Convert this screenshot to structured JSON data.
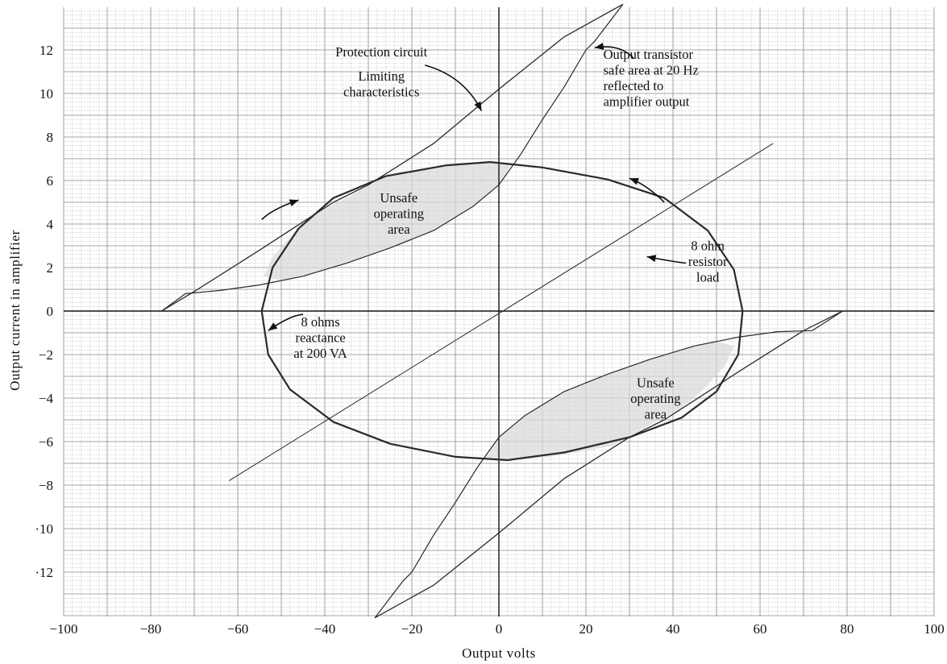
{
  "chart_data": {
    "type": "line",
    "xlabel": "Output volts",
    "ylabel": "Output current in amplifier",
    "xlim": [
      -100,
      100
    ],
    "ylim": [
      -14,
      14
    ],
    "x_ticks": [
      -100,
      -80,
      -60,
      -40,
      -20,
      0,
      20,
      40,
      60,
      80,
      100
    ],
    "x_tick_labels": [
      "−100",
      "−80",
      "−60",
      "−40",
      "−20",
      "0",
      "20",
      "40",
      "60",
      "80",
      "100"
    ],
    "y_ticks": [
      12,
      10,
      8,
      6,
      4,
      2,
      0,
      -2,
      -4,
      -6,
      -8,
      -10,
      -12
    ],
    "y_tick_labels": [
      "12",
      "10",
      "8",
      "6",
      "4",
      "2",
      "0",
      "−2",
      "−4",
      "−6",
      "−8",
      "·10",
      "·12"
    ],
    "grid": true,
    "series": [
      {
        "points": [
          [
            -77.5,
            0
          ],
          [
            -72,
            0.8
          ],
          [
            -64,
            0.95
          ],
          [
            -55,
            1.2
          ],
          [
            -45,
            1.6
          ],
          [
            -35,
            2.2
          ],
          [
            -25,
            2.9
          ],
          [
            -15,
            3.7
          ],
          [
            -6,
            4.8
          ],
          [
            0,
            5.8
          ],
          [
            5,
            7.2
          ],
          [
            10,
            8.8
          ],
          [
            15,
            10.3
          ],
          [
            20,
            12
          ],
          [
            22,
            12.4
          ],
          [
            28.5,
            14.1
          ]
        ]
      },
      {
        "points": [
          [
            -77.5,
            0
          ],
          [
            -70,
            0.9
          ],
          [
            -55,
            2.8
          ],
          [
            -45,
            4.1
          ],
          [
            -38,
            5.0
          ],
          [
            -30,
            5.8
          ],
          [
            -15,
            7.7
          ],
          [
            0,
            10.2
          ],
          [
            15,
            12.6
          ],
          [
            28.5,
            14.1
          ]
        ]
      },
      {
        "points": [
          [
            -54.5,
            0
          ],
          [
            -52,
            2
          ],
          [
            -46,
            3.8
          ],
          [
            -38,
            5.2
          ],
          [
            -26,
            6.2
          ],
          [
            -12,
            6.7
          ],
          [
            -2,
            6.85
          ],
          [
            10,
            6.6
          ],
          [
            25,
            6.05
          ],
          [
            38,
            5.2
          ],
          [
            48,
            3.7
          ],
          [
            54,
            1.9
          ],
          [
            56,
            0
          ],
          [
            55,
            -2
          ],
          [
            50,
            -3.7
          ],
          [
            42,
            -4.9
          ],
          [
            30,
            -5.8
          ],
          [
            15,
            -6.5
          ],
          [
            2,
            -6.85
          ],
          [
            -10,
            -6.7
          ],
          [
            -25,
            -6.1
          ],
          [
            -38,
            -5.1
          ],
          [
            -48,
            -3.6
          ],
          [
            -53,
            -2
          ],
          [
            -54.5,
            0
          ]
        ]
      },
      {
        "points": [
          [
            -62,
            -7.8
          ],
          [
            63,
            7.7
          ]
        ]
      },
      {
        "points": [
          [
            79,
            0
          ],
          [
            72,
            -0.9
          ],
          [
            64,
            -0.95
          ],
          [
            55,
            -1.2
          ],
          [
            45,
            -1.6
          ],
          [
            35,
            -2.2
          ],
          [
            25,
            -2.9
          ],
          [
            15,
            -3.7
          ],
          [
            6,
            -4.8
          ],
          [
            0,
            -5.8
          ],
          [
            -5,
            -7.2
          ],
          [
            -10,
            -8.8
          ],
          [
            -15,
            -10.3
          ],
          [
            -20,
            -12
          ],
          [
            -22,
            -12.4
          ],
          [
            -28.5,
            -14.1
          ]
        ]
      },
      {
        "points": [
          [
            79,
            0
          ],
          [
            70,
            -0.9
          ],
          [
            55,
            -2.8
          ],
          [
            45,
            -4.1
          ],
          [
            38,
            -5.0
          ],
          [
            30,
            -5.8
          ],
          [
            15,
            -7.7
          ],
          [
            0,
            -10.2
          ],
          [
            -15,
            -12.6
          ],
          [
            -28.5,
            -14.1
          ]
        ]
      }
    ],
    "shaded_regions": [
      {
        "points": [
          [
            -35,
            5.2
          ],
          [
            -26,
            6.2
          ],
          [
            -12,
            6.7
          ],
          [
            -2,
            6.85
          ],
          [
            3,
            6.8
          ],
          [
            0,
            5.8
          ],
          [
            -6,
            4.8
          ],
          [
            -15,
            3.7
          ],
          [
            -25,
            2.9
          ],
          [
            -35,
            2.2
          ],
          [
            -45,
            1.6
          ],
          [
            -50,
            1.4
          ],
          [
            -54,
            1.6
          ],
          [
            -52,
            2.5
          ],
          [
            -47,
            3.6
          ],
          [
            -41,
            4.6
          ]
        ]
      },
      {
        "points": [
          [
            35,
            -5.2
          ],
          [
            26,
            -6.2
          ],
          [
            12,
            -6.7
          ],
          [
            2,
            -6.85
          ],
          [
            -3,
            -6.8
          ],
          [
            0,
            -5.8
          ],
          [
            6,
            -4.8
          ],
          [
            15,
            -3.7
          ],
          [
            25,
            -2.9
          ],
          [
            35,
            -2.2
          ],
          [
            45,
            -1.6
          ],
          [
            50,
            -1.4
          ],
          [
            54,
            -1.6
          ],
          [
            52,
            -2.5
          ],
          [
            47,
            -3.6
          ],
          [
            41,
            -4.6
          ]
        ]
      }
    ],
    "annotations": [
      {
        "lines": [
          "Protection circuit"
        ],
        "x": -27,
        "y": 11.7,
        "align": "middle"
      },
      {
        "lines": [
          "Limiting",
          "characteristics"
        ],
        "x": -27,
        "y": 10.6,
        "align": "middle"
      },
      {
        "lines": [
          "Output transistor",
          "safe area at 20 Hz",
          "reflected to",
          "amplifier output"
        ],
        "x": 24,
        "y": 11.6,
        "align": "start"
      },
      {
        "lines": [
          "Unsafe",
          "operating",
          "area"
        ],
        "x": -23,
        "y": 5.0,
        "align": "middle"
      },
      {
        "lines": [
          "8 ohm",
          "resistor",
          "load"
        ],
        "x": 48,
        "y": 2.8,
        "align": "middle"
      },
      {
        "lines": [
          "8 ohms",
          "reactance",
          "at 200 VA"
        ],
        "x": -41,
        "y": -0.7,
        "align": "middle"
      },
      {
        "lines": [
          "Unsafe",
          "operating",
          "area"
        ],
        "x": 36,
        "y": -3.5,
        "align": "middle"
      }
    ],
    "arrows": [
      {
        "path": [
          [
            -17,
            11.3
          ],
          [
            -8,
            10.8
          ],
          [
            -4,
            9.2
          ]
        ]
      },
      {
        "path": [
          [
            31,
            11.6
          ],
          [
            28,
            12.3
          ],
          [
            22,
            12.1
          ]
        ]
      },
      {
        "path": [
          [
            38,
            5.0
          ],
          [
            34,
            5.8
          ],
          [
            30,
            6.1
          ]
        ]
      },
      {
        "path": [
          [
            43,
            2.2
          ],
          [
            39,
            2.3
          ],
          [
            34,
            2.5
          ]
        ]
      },
      {
        "path": [
          [
            -54.5,
            4.2
          ],
          [
            -52,
            4.7
          ],
          [
            -46,
            5.1
          ]
        ]
      },
      {
        "path": [
          [
            -45,
            -0.15
          ],
          [
            -48,
            -0.2
          ],
          [
            -53,
            -0.9
          ]
        ]
      }
    ]
  }
}
